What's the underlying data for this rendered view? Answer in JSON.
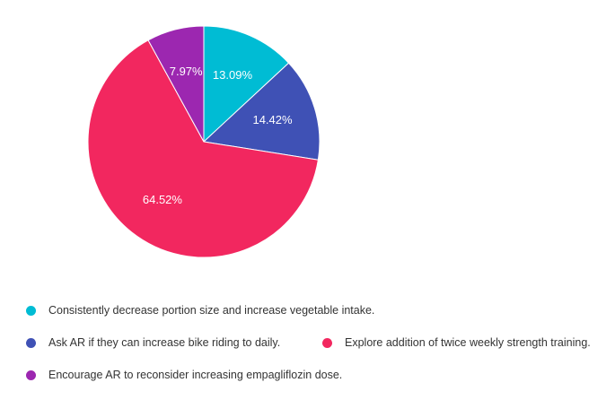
{
  "chart_data": {
    "type": "pie",
    "title": "",
    "legend_position": "bottom",
    "slices": [
      {
        "label": "Consistently decrease portion size and increase vegetable intake.",
        "value": 13.09,
        "display": "13.09%",
        "color": "#00bcd4"
      },
      {
        "label": "Ask AR if they can increase bike riding to daily.",
        "value": 14.42,
        "display": "14.42%",
        "color": "#3f51b5"
      },
      {
        "label": "Explore addition of twice weekly strength training.",
        "value": 64.52,
        "display": "64.52%",
        "color": "#f2275f"
      },
      {
        "label": "Encourage AR to reconsider increasing empagliflozin dose.",
        "value": 7.97,
        "display": "7.97%",
        "color": "#9c27b0"
      }
    ]
  }
}
